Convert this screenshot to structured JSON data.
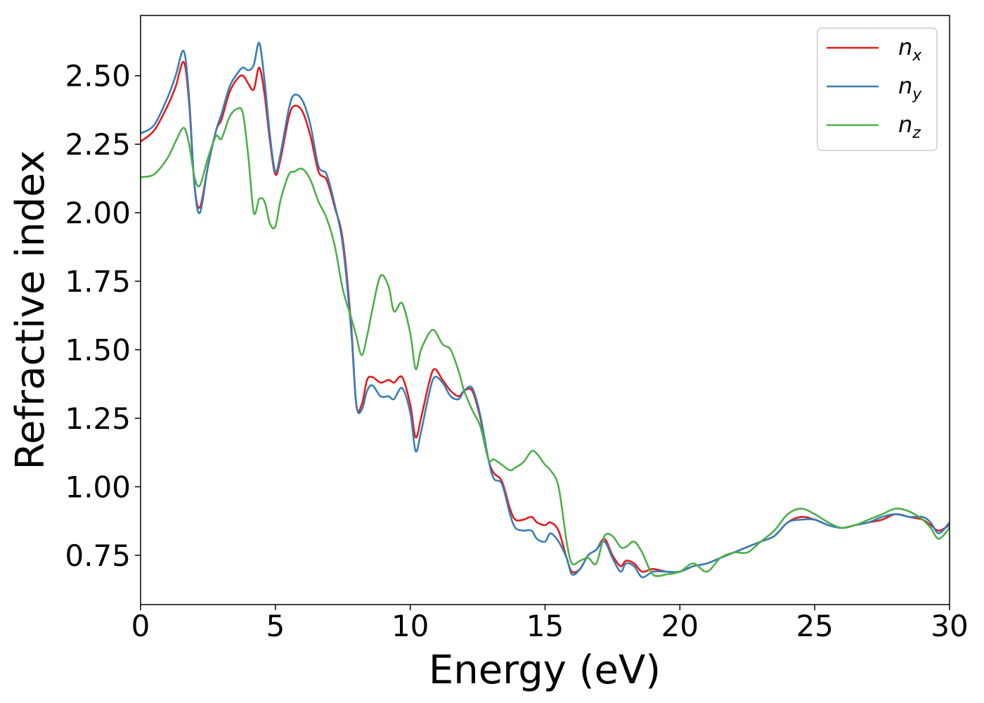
{
  "chart_data": {
    "type": "line",
    "title": "",
    "xlabel": "Energy (eV)",
    "ylabel": "Refractive index",
    "xlim": [
      0,
      30
    ],
    "ylim": [
      0.57,
      2.72
    ],
    "xticks": [
      0,
      5,
      10,
      15,
      20,
      25,
      30
    ],
    "xtick_labels": [
      "0",
      "5",
      "10",
      "15",
      "20",
      "25",
      "30"
    ],
    "yticks": [
      0.75,
      1.0,
      1.25,
      1.5,
      1.75,
      2.0,
      2.25,
      2.5
    ],
    "ytick_labels": [
      "0.75",
      "1.00",
      "1.25",
      "1.50",
      "1.75",
      "2.00",
      "2.25",
      "2.50"
    ],
    "grid": false,
    "legend_position": "top-right",
    "series": [
      {
        "name": "n_x",
        "legend": {
          "base": "n",
          "sub": "x"
        },
        "color": "#e41a1c",
        "x": [
          0,
          0.5,
          1.0,
          1.3,
          1.6,
          1.8,
          2.0,
          2.2,
          2.5,
          2.8,
          3.0,
          3.3,
          3.6,
          3.8,
          4.0,
          4.2,
          4.4,
          4.6,
          4.8,
          5.0,
          5.2,
          5.5,
          5.7,
          6.0,
          6.3,
          6.6,
          6.9,
          7.2,
          7.5,
          7.8,
          8.0,
          8.2,
          8.4,
          8.6,
          8.9,
          9.2,
          9.4,
          9.7,
          10.0,
          10.2,
          10.4,
          10.7,
          10.9,
          11.2,
          11.5,
          11.8,
          12.0,
          12.3,
          12.6,
          12.9,
          13.1,
          13.4,
          13.7,
          13.9,
          14.2,
          14.5,
          14.7,
          15.0,
          15.2,
          15.5,
          15.8,
          16.0,
          16.3,
          16.6,
          16.9,
          17.2,
          17.5,
          17.8,
          18.0,
          18.3,
          18.6,
          19.0,
          19.5,
          20.0,
          20.5,
          21.0,
          21.5,
          22.0,
          22.5,
          23.0,
          23.5,
          24.0,
          24.5,
          25.0,
          25.5,
          26.0,
          26.5,
          27.0,
          27.5,
          28.0,
          28.5,
          29.0,
          29.3,
          29.6,
          30.0
        ],
        "y": [
          2.26,
          2.3,
          2.39,
          2.46,
          2.55,
          2.4,
          2.1,
          2.02,
          2.17,
          2.3,
          2.34,
          2.44,
          2.49,
          2.5,
          2.47,
          2.45,
          2.53,
          2.43,
          2.26,
          2.14,
          2.2,
          2.35,
          2.39,
          2.37,
          2.28,
          2.15,
          2.12,
          2.02,
          1.9,
          1.6,
          1.3,
          1.3,
          1.39,
          1.4,
          1.38,
          1.39,
          1.38,
          1.4,
          1.3,
          1.18,
          1.25,
          1.38,
          1.43,
          1.39,
          1.35,
          1.33,
          1.35,
          1.35,
          1.25,
          1.1,
          1.05,
          1.02,
          0.92,
          0.88,
          0.88,
          0.89,
          0.87,
          0.86,
          0.87,
          0.84,
          0.74,
          0.69,
          0.7,
          0.75,
          0.77,
          0.81,
          0.75,
          0.71,
          0.73,
          0.72,
          0.69,
          0.7,
          0.69,
          0.69,
          0.71,
          0.72,
          0.74,
          0.76,
          0.78,
          0.8,
          0.82,
          0.87,
          0.89,
          0.88,
          0.86,
          0.85,
          0.86,
          0.87,
          0.88,
          0.9,
          0.89,
          0.88,
          0.86,
          0.84,
          0.86
        ]
      },
      {
        "name": "n_y",
        "legend": {
          "base": "n",
          "sub": "y"
        },
        "color": "#377eb8",
        "x": [
          0,
          0.5,
          1.0,
          1.3,
          1.6,
          1.8,
          2.0,
          2.2,
          2.5,
          2.8,
          3.0,
          3.3,
          3.6,
          3.8,
          4.0,
          4.2,
          4.4,
          4.6,
          4.8,
          5.0,
          5.2,
          5.5,
          5.7,
          6.0,
          6.3,
          6.6,
          6.9,
          7.2,
          7.5,
          7.8,
          8.0,
          8.2,
          8.4,
          8.6,
          8.9,
          9.2,
          9.4,
          9.7,
          10.0,
          10.2,
          10.4,
          10.7,
          10.9,
          11.2,
          11.5,
          11.8,
          12.0,
          12.3,
          12.6,
          12.9,
          13.1,
          13.4,
          13.7,
          13.9,
          14.2,
          14.5,
          14.7,
          15.0,
          15.2,
          15.5,
          15.8,
          16.0,
          16.3,
          16.6,
          16.9,
          17.2,
          17.5,
          17.8,
          18.0,
          18.3,
          18.6,
          19.0,
          19.5,
          20.0,
          20.5,
          21.0,
          21.5,
          22.0,
          22.5,
          23.0,
          23.5,
          24.0,
          24.5,
          25.0,
          25.5,
          26.0,
          26.5,
          27.0,
          27.5,
          28.0,
          28.5,
          29.0,
          29.3,
          29.6,
          30.0
        ],
        "y": [
          2.29,
          2.32,
          2.42,
          2.5,
          2.59,
          2.42,
          2.1,
          2.0,
          2.17,
          2.3,
          2.36,
          2.46,
          2.51,
          2.53,
          2.52,
          2.54,
          2.62,
          2.48,
          2.28,
          2.15,
          2.22,
          2.38,
          2.43,
          2.41,
          2.32,
          2.17,
          2.14,
          2.03,
          1.88,
          1.58,
          1.3,
          1.28,
          1.35,
          1.37,
          1.33,
          1.33,
          1.32,
          1.36,
          1.27,
          1.13,
          1.2,
          1.34,
          1.4,
          1.38,
          1.33,
          1.32,
          1.35,
          1.36,
          1.26,
          1.1,
          1.03,
          1.01,
          0.9,
          0.85,
          0.84,
          0.84,
          0.81,
          0.8,
          0.83,
          0.8,
          0.74,
          0.68,
          0.7,
          0.75,
          0.77,
          0.8,
          0.74,
          0.69,
          0.72,
          0.71,
          0.67,
          0.69,
          0.69,
          0.69,
          0.71,
          0.72,
          0.74,
          0.76,
          0.78,
          0.8,
          0.82,
          0.87,
          0.88,
          0.88,
          0.86,
          0.85,
          0.86,
          0.87,
          0.89,
          0.9,
          0.89,
          0.89,
          0.87,
          0.83,
          0.87
        ]
      },
      {
        "name": "n_z",
        "legend": {
          "base": "n",
          "sub": "z"
        },
        "color": "#4daf4a",
        "x": [
          0,
          0.5,
          1.0,
          1.3,
          1.6,
          1.8,
          2.0,
          2.2,
          2.5,
          2.8,
          3.0,
          3.3,
          3.6,
          3.8,
          4.0,
          4.2,
          4.4,
          4.6,
          4.8,
          5.0,
          5.2,
          5.5,
          5.7,
          6.0,
          6.3,
          6.6,
          6.9,
          7.2,
          7.5,
          7.8,
          8.0,
          8.2,
          8.4,
          8.6,
          8.9,
          9.2,
          9.4,
          9.7,
          10.0,
          10.2,
          10.4,
          10.7,
          10.9,
          11.2,
          11.5,
          11.8,
          12.0,
          12.3,
          12.6,
          12.9,
          13.1,
          13.4,
          13.7,
          13.9,
          14.2,
          14.5,
          14.7,
          15.0,
          15.2,
          15.5,
          15.8,
          16.0,
          16.3,
          16.6,
          16.9,
          17.2,
          17.5,
          17.8,
          18.0,
          18.3,
          18.6,
          19.0,
          19.5,
          20.0,
          20.5,
          21.0,
          21.5,
          22.0,
          22.5,
          23.0,
          23.5,
          24.0,
          24.5,
          25.0,
          25.5,
          26.0,
          26.5,
          27.0,
          27.5,
          28.0,
          28.5,
          29.0,
          29.3,
          29.6,
          30.0
        ],
        "y": [
          2.13,
          2.14,
          2.2,
          2.26,
          2.31,
          2.25,
          2.13,
          2.1,
          2.2,
          2.28,
          2.27,
          2.35,
          2.38,
          2.36,
          2.2,
          2.0,
          2.05,
          2.04,
          1.96,
          1.95,
          2.05,
          2.14,
          2.15,
          2.16,
          2.12,
          2.04,
          1.98,
          1.88,
          1.72,
          1.62,
          1.55,
          1.48,
          1.55,
          1.65,
          1.77,
          1.73,
          1.64,
          1.67,
          1.56,
          1.43,
          1.5,
          1.56,
          1.57,
          1.52,
          1.5,
          1.42,
          1.35,
          1.28,
          1.22,
          1.1,
          1.1,
          1.08,
          1.06,
          1.07,
          1.09,
          1.13,
          1.12,
          1.08,
          1.06,
          1.0,
          0.8,
          0.72,
          0.73,
          0.74,
          0.72,
          0.82,
          0.82,
          0.78,
          0.78,
          0.8,
          0.76,
          0.68,
          0.68,
          0.69,
          0.72,
          0.69,
          0.74,
          0.76,
          0.76,
          0.8,
          0.84,
          0.9,
          0.92,
          0.9,
          0.87,
          0.85,
          0.86,
          0.88,
          0.9,
          0.92,
          0.91,
          0.88,
          0.85,
          0.81,
          0.85
        ]
      }
    ]
  }
}
